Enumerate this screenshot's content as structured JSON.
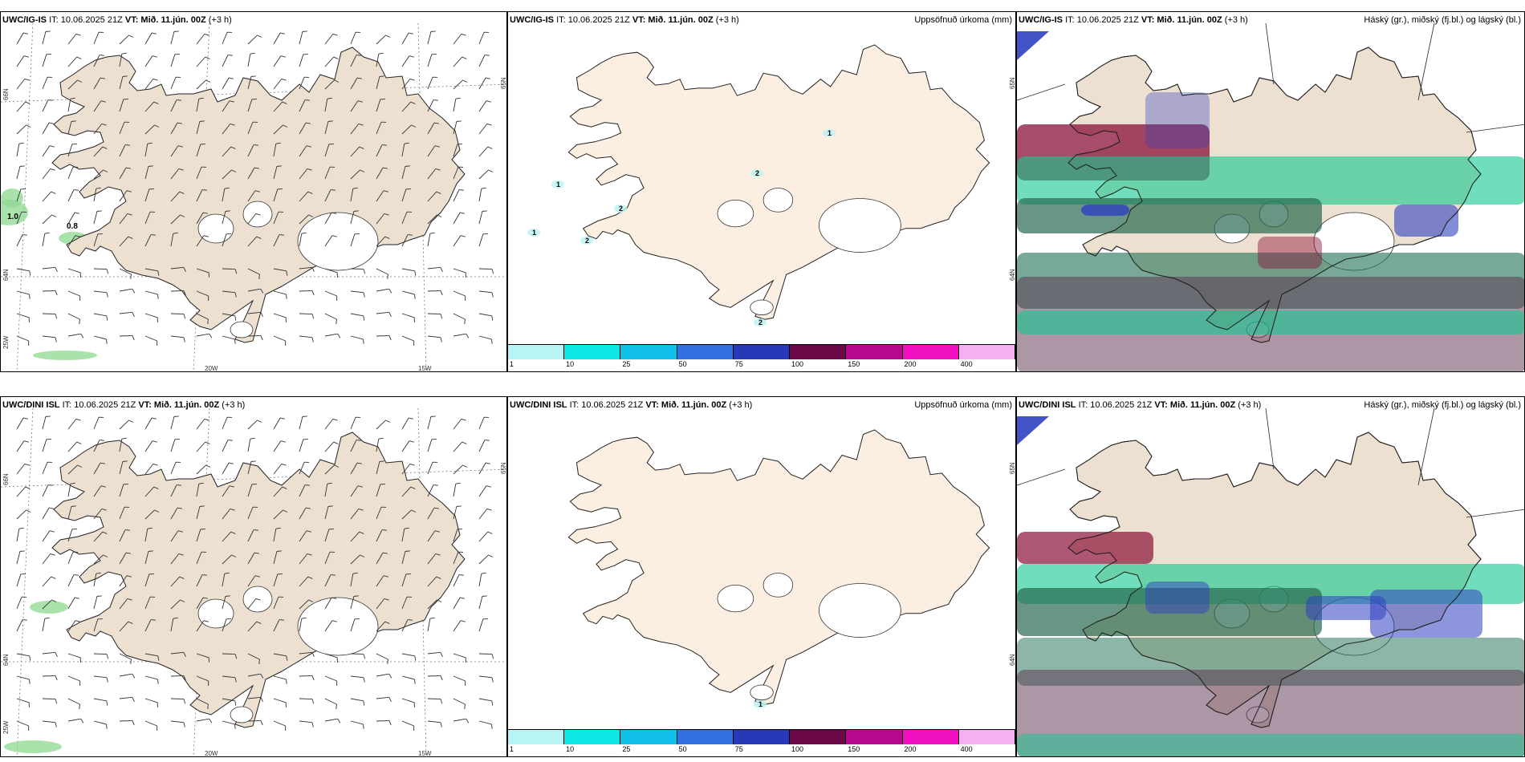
{
  "rows": [
    {
      "model": "UWC/IG-IS",
      "it_label": "IT: 10.06.2025 21Z",
      "vt_label": "VT: Mið. 11.jún. 00Z",
      "offset": "(+3 h)",
      "wind_values": [
        "1.0",
        "0.8"
      ],
      "precip_values": [
        "1",
        "2",
        "1",
        "2",
        "1",
        "2",
        "2"
      ]
    },
    {
      "model": "UWC/DINI ISL",
      "it_label": "IT: 10.06.2025 21Z",
      "vt_label": "VT: Mið. 11.jún. 00Z",
      "offset": "(+3 h)",
      "wind_values": [],
      "precip_values": [
        "1"
      ]
    }
  ],
  "panel_titles": {
    "precip": "Uppsöfnuð úrkoma (mm)",
    "cloud": "Háský (gr.), miðský (fj.bl.) og lágský (bl.)"
  },
  "axes": {
    "lat_labels": [
      "66N",
      "64N",
      "65N",
      "25W"
    ],
    "lon_labels": [
      "20W",
      "15W"
    ],
    "precip_lat_labels": [
      "65N",
      "64N"
    ]
  },
  "legend": {
    "ticks": [
      "1",
      "10",
      "25",
      "50",
      "75",
      "100",
      "150",
      "200",
      "400"
    ],
    "colors": [
      "#b8f4f4",
      "#10e8e8",
      "#10c0e8",
      "#3070e0",
      "#2838b8",
      "#6a0848",
      "#b80890",
      "#f010c0",
      "#f4b0f0"
    ]
  },
  "colors": {
    "land": "#ede0d0",
    "land_precip": "#fcefe2",
    "ice": "#ffffff",
    "cloud_high": "#8a1038",
    "cloud_mid": "#10c890",
    "cloud_low": "#3040c0"
  }
}
